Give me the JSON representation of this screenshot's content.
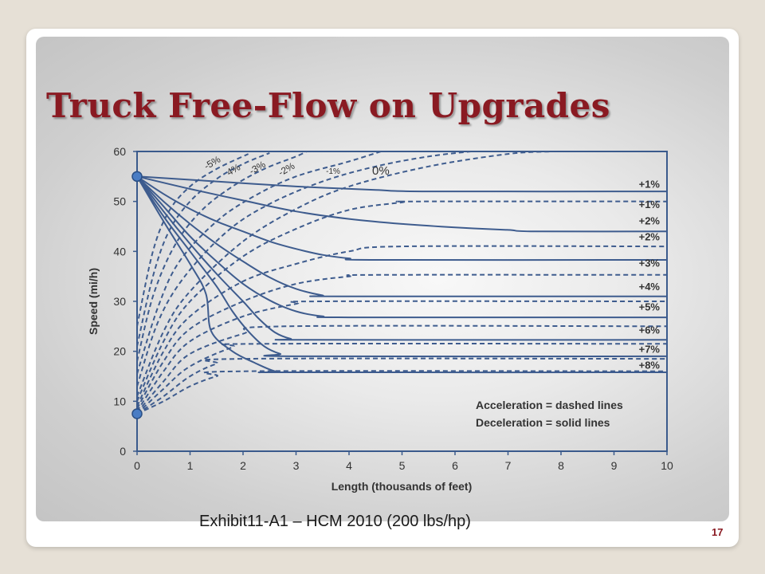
{
  "slide": {
    "title": "Truck Free-Flow on Upgrades",
    "caption": "Exhibit11-A1 – HCM 2010 (200 lbs/hp)",
    "page_number": "17"
  },
  "colors": {
    "title": "#8a1a22",
    "curve": "#3e5c8e",
    "axis": "#3a5a8c",
    "dot": "#4a7dc4"
  },
  "chart_data": {
    "type": "line",
    "xlabel": "Length (thousands of feet)",
    "ylabel": "Speed (mi/h)",
    "xlim": [
      0,
      10
    ],
    "ylim": [
      0,
      60
    ],
    "x_ticks": [
      0,
      1,
      2,
      3,
      4,
      5,
      6,
      7,
      8,
      9,
      10
    ],
    "y_ticks": [
      0,
      10,
      20,
      30,
      40,
      50,
      60
    ],
    "legend_text": [
      "Acceleration = dashed lines",
      "Deceleration = solid lines"
    ],
    "start_points": [
      {
        "x": 0,
        "y": 55
      },
      {
        "x": 0,
        "y": 7.5
      }
    ],
    "deceleration_series": [
      {
        "label": "+1%",
        "points": [
          [
            0,
            55
          ],
          [
            1.5,
            54
          ],
          [
            3,
            53
          ],
          [
            4.5,
            52.3
          ],
          [
            5.5,
            52
          ],
          [
            10,
            52
          ]
        ]
      },
      {
        "label": "+2%",
        "points": [
          [
            0,
            55
          ],
          [
            1,
            52.5
          ],
          [
            2,
            50.2
          ],
          [
            3,
            48
          ],
          [
            4,
            46.5
          ],
          [
            5,
            45.5
          ],
          [
            6,
            44.8
          ],
          [
            7,
            44.3
          ],
          [
            7.5,
            44
          ],
          [
            10,
            44
          ]
        ]
      },
      {
        "label": "+3%",
        "points": [
          [
            0,
            55
          ],
          [
            0.5,
            51.5
          ],
          [
            1,
            48.5
          ],
          [
            1.5,
            46
          ],
          [
            2,
            44
          ],
          [
            2.5,
            42
          ],
          [
            3,
            40.5
          ],
          [
            3.5,
            39.3
          ],
          [
            4,
            38.6
          ],
          [
            4.5,
            38.3
          ],
          [
            10,
            38.3
          ]
        ]
      },
      {
        "label": "+4%",
        "points": [
          [
            0,
            55
          ],
          [
            0.5,
            50
          ],
          [
            1,
            45.5
          ],
          [
            1.5,
            41.5
          ],
          [
            2,
            38
          ],
          [
            2.5,
            34.8
          ],
          [
            3,
            32.5
          ],
          [
            3.5,
            31.2
          ],
          [
            3.8,
            31
          ],
          [
            10,
            31
          ]
        ]
      },
      {
        "label": "+5%",
        "points": [
          [
            0,
            55
          ],
          [
            0.5,
            49
          ],
          [
            1,
            43
          ],
          [
            1.5,
            38
          ],
          [
            2,
            33.5
          ],
          [
            2.5,
            30.2
          ],
          [
            3,
            28
          ],
          [
            3.5,
            27
          ],
          [
            4,
            26.8
          ],
          [
            10,
            26.8
          ]
        ]
      },
      {
        "label": "+6%",
        "points": [
          [
            0,
            55
          ],
          [
            0.5,
            48
          ],
          [
            1,
            41.5
          ],
          [
            1.5,
            35.5
          ],
          [
            2,
            30
          ],
          [
            2.3,
            26.5
          ],
          [
            2.6,
            23.8
          ],
          [
            2.9,
            22.5
          ],
          [
            3.2,
            22.3
          ],
          [
            10,
            22.3
          ]
        ]
      },
      {
        "label": "+7%",
        "points": [
          [
            0,
            55
          ],
          [
            0.5,
            47
          ],
          [
            1,
            40
          ],
          [
            1.5,
            33
          ],
          [
            1.8,
            28
          ],
          [
            2.1,
            24
          ],
          [
            2.4,
            21
          ],
          [
            2.7,
            19.5
          ],
          [
            3,
            19
          ],
          [
            10,
            19
          ]
        ]
      },
      {
        "label": "+8%",
        "points": [
          [
            0,
            55
          ],
          [
            0.5,
            46
          ],
          [
            1,
            37.5
          ],
          [
            1.3,
            31.5
          ],
          [
            1.4,
            24
          ],
          [
            1.8,
            20
          ],
          [
            2.2,
            17.8
          ],
          [
            2.6,
            16
          ],
          [
            2.9,
            15.8
          ],
          [
            10,
            15.8
          ]
        ]
      }
    ],
    "acceleration_series": [
      {
        "label": "-5%",
        "points": [
          [
            0,
            25
          ],
          [
            0.3,
            40
          ],
          [
            0.6,
            48
          ],
          [
            1,
            53
          ],
          [
            1.5,
            56.5
          ],
          [
            2.1,
            59.5
          ]
        ]
      },
      {
        "label": "-4%",
        "points": [
          [
            0,
            21
          ],
          [
            0.3,
            35
          ],
          [
            0.6,
            44
          ],
          [
            1,
            50
          ],
          [
            1.5,
            54.5
          ],
          [
            2,
            57.5
          ],
          [
            2.5,
            59.7
          ]
        ]
      },
      {
        "label": "-3%",
        "points": [
          [
            0,
            18
          ],
          [
            0.3,
            31
          ],
          [
            0.7,
            41
          ],
          [
            1.2,
            48
          ],
          [
            1.8,
            53
          ],
          [
            2.4,
            56.5
          ],
          [
            3,
            59
          ],
          [
            3.2,
            60
          ]
        ]
      },
      {
        "label": "-2%",
        "points": [
          [
            0,
            15.5
          ],
          [
            0.4,
            29
          ],
          [
            0.8,
            38
          ],
          [
            1.5,
            46
          ],
          [
            2.2,
            51
          ],
          [
            3,
            55
          ],
          [
            4,
            58
          ],
          [
            4.6,
            60
          ]
        ]
      },
      {
        "label": "-1%",
        "points": [
          [
            0,
            13
          ],
          [
            0.4,
            26
          ],
          [
            0.9,
            35
          ],
          [
            1.7,
            44
          ],
          [
            2.5,
            49.5
          ],
          [
            3.5,
            54
          ],
          [
            4.5,
            57
          ],
          [
            5.5,
            59
          ],
          [
            6.3,
            60
          ]
        ]
      },
      {
        "label": "0%",
        "points": [
          [
            0,
            11
          ],
          [
            0.5,
            24
          ],
          [
            1,
            32
          ],
          [
            2,
            42
          ],
          [
            3,
            48.5
          ],
          [
            4,
            53
          ],
          [
            5.5,
            57
          ],
          [
            7,
            59.5
          ],
          [
            7.8,
            60
          ]
        ]
      },
      {
        "label": "+1%",
        "points": [
          [
            0,
            10
          ],
          [
            0.5,
            22
          ],
          [
            1,
            30
          ],
          [
            2,
            39
          ],
          [
            3,
            44.5
          ],
          [
            4,
            48.3
          ],
          [
            5,
            49.8
          ],
          [
            5.3,
            50
          ],
          [
            10,
            50
          ]
        ]
      },
      {
        "label": "+2%",
        "points": [
          [
            0,
            9
          ],
          [
            0.5,
            20
          ],
          [
            1,
            27
          ],
          [
            2,
            34
          ],
          [
            3,
            37.5
          ],
          [
            4,
            40
          ],
          [
            5,
            41
          ],
          [
            10,
            41
          ]
        ]
      },
      {
        "label": "+3%",
        "points": [
          [
            0,
            8.5
          ],
          [
            0.5,
            18
          ],
          [
            1,
            24.5
          ],
          [
            2,
            30
          ],
          [
            3,
            33.5
          ],
          [
            4,
            35
          ],
          [
            4.5,
            35.3
          ],
          [
            10,
            35.3
          ]
        ]
      },
      {
        "label": "+4%",
        "points": [
          [
            0,
            8
          ],
          [
            0.5,
            16
          ],
          [
            1,
            22
          ],
          [
            2,
            27
          ],
          [
            3,
            29.5
          ],
          [
            3.5,
            30
          ],
          [
            10,
            30
          ]
        ]
      },
      {
        "label": "+5%",
        "points": [
          [
            0,
            7.7
          ],
          [
            0.5,
            14
          ],
          [
            1,
            19.5
          ],
          [
            2,
            23.5
          ],
          [
            2.8,
            25
          ],
          [
            10,
            25
          ]
        ]
      },
      {
        "label": "+6%",
        "points": [
          [
            0,
            7.5
          ],
          [
            0.5,
            12.5
          ],
          [
            1,
            17
          ],
          [
            1.8,
            20.8
          ],
          [
            2.3,
            21.5
          ],
          [
            10,
            21.5
          ]
        ]
      },
      {
        "label": "+7%",
        "points": [
          [
            0,
            7.5
          ],
          [
            0.5,
            11
          ],
          [
            1,
            15
          ],
          [
            1.5,
            17.5
          ],
          [
            2,
            18.5
          ],
          [
            10,
            18.5
          ]
        ]
      },
      {
        "label": "+8%",
        "points": [
          [
            0,
            7.5
          ],
          [
            0.5,
            10
          ],
          [
            1,
            13
          ],
          [
            1.5,
            15
          ],
          [
            2,
            16
          ],
          [
            10,
            16
          ]
        ]
      }
    ],
    "right_labels": [
      {
        "text": "+1%",
        "y": 53.5
      },
      {
        "text": "+1%",
        "y": 49.5
      },
      {
        "text": "+2%",
        "y": 46.2
      },
      {
        "text": "+2%",
        "y": 43
      },
      {
        "text": "+3%",
        "y": 37.7
      },
      {
        "text": "+4%",
        "y": 33
      },
      {
        "text": "+5%",
        "y": 29
      },
      {
        "text": "+6%",
        "y": 24.3
      },
      {
        "text": "+7%",
        "y": 20.5
      },
      {
        "text": "+8%",
        "y": 17.3
      }
    ],
    "top_labels": [
      {
        "text": "-5%",
        "x": 1.45,
        "y": 57.2,
        "rot": -30
      },
      {
        "text": "4%",
        "x": 1.85,
        "y": 55.8,
        "rot": -30
      },
      {
        "text": "-3%",
        "x": 2.3,
        "y": 56.2,
        "rot": -30
      },
      {
        "text": "-2%",
        "x": 2.85,
        "y": 55.9,
        "rot": -30
      },
      {
        "text": "-1%",
        "x": 3.7,
        "y": 55.5,
        "rot": 0
      },
      {
        "text": "0%",
        "x": 4.6,
        "y": 55.4,
        "rot": 0
      }
    ]
  }
}
